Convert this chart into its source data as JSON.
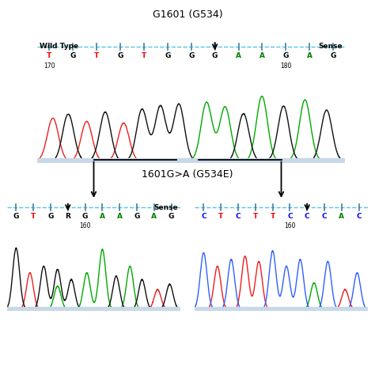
{
  "title_top": "G1601 (G534)",
  "title_bottom": "1601G>A (G534E)",
  "wt_label": "Wild Type",
  "sense_label": "Sense",
  "sense_label2": "Sense",
  "top_seq": [
    "T",
    "G",
    "T",
    "G",
    "T",
    "G",
    "G",
    "G",
    "A",
    "A",
    "G",
    "A",
    "G"
  ],
  "top_seq_colors": [
    "red",
    "black",
    "red",
    "black",
    "red",
    "black",
    "black",
    "black",
    "green",
    "green",
    "black",
    "green",
    "black"
  ],
  "top_num_left": "170",
  "top_num_right": "180",
  "bot_left_seq": [
    "G",
    "T",
    "G",
    "R",
    "G",
    "A",
    "A",
    "G",
    "A",
    "G"
  ],
  "bot_left_seq_colors": [
    "black",
    "red",
    "black",
    "black",
    "black",
    "green",
    "green",
    "black",
    "green",
    "black"
  ],
  "bot_left_num": "160",
  "bot_right_seq": [
    "C",
    "T",
    "C",
    "T",
    "T",
    "C",
    "C",
    "C",
    "A",
    "C"
  ],
  "bot_right_seq_colors": [
    "blue",
    "red",
    "blue",
    "red",
    "red",
    "blue",
    "blue",
    "blue",
    "green",
    "blue"
  ],
  "bot_right_num": "160",
  "bg_color": "#ffffff",
  "dashed_line_color": "#40c0e0",
  "ruler_tick_color": "#4080a0",
  "lightblue_bar": "#c8d8e8"
}
